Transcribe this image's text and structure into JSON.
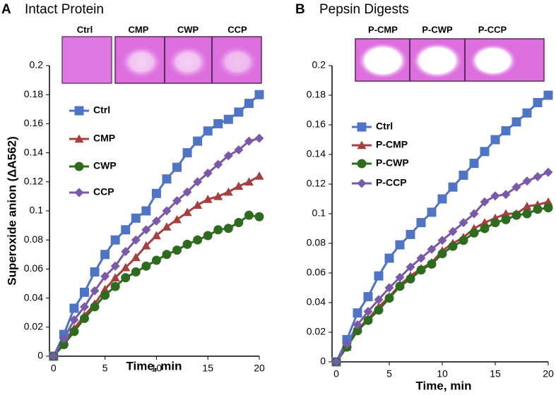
{
  "chart_data": [
    {
      "type": "line",
      "panel_label": "A",
      "title": "Intact Protein",
      "gel_labels": [
        "Ctrl",
        "CMP",
        "CWP",
        "CCP"
      ],
      "ylabel": "Superoxide anion (ΔA562)",
      "xlabel": "Time, min",
      "x": [
        0,
        1,
        2,
        3,
        4,
        5,
        6,
        7,
        8,
        9,
        10,
        11,
        12,
        13,
        14,
        15,
        16,
        17,
        18,
        19,
        20
      ],
      "xlim": [
        -0.4,
        20
      ],
      "ylim": [
        0,
        0.2
      ],
      "xticks": [
        0,
        5,
        10,
        15,
        20
      ],
      "yticks": [
        0,
        0.02,
        0.04,
        0.06,
        0.08,
        0.1,
        0.12,
        0.14,
        0.16,
        0.18,
        0.2
      ],
      "series": [
        {
          "name": "Ctrl",
          "color": "#4f74c4",
          "marker": "square",
          "values": [
            0,
            0.015,
            0.033,
            0.044,
            0.058,
            0.07,
            0.08,
            0.087,
            0.095,
            0.1,
            0.112,
            0.122,
            0.13,
            0.14,
            0.148,
            0.155,
            0.16,
            0.163,
            0.168,
            0.174,
            0.18
          ]
        },
        {
          "name": "CMP",
          "color": "#a5403e",
          "marker": "triangle",
          "values": [
            0,
            0.01,
            0.019,
            0.028,
            0.036,
            0.046,
            0.054,
            0.061,
            0.068,
            0.076,
            0.083,
            0.089,
            0.094,
            0.099,
            0.104,
            0.108,
            0.11,
            0.113,
            0.117,
            0.12,
            0.124
          ]
        },
        {
          "name": "CWP",
          "color": "#2f6b1e",
          "marker": "circle",
          "values": [
            0,
            0.008,
            0.017,
            0.026,
            0.034,
            0.042,
            0.048,
            0.054,
            0.058,
            0.062,
            0.066,
            0.07,
            0.073,
            0.077,
            0.08,
            0.083,
            0.087,
            0.088,
            0.092,
            0.097,
            0.096
          ]
        },
        {
          "name": "CCP",
          "color": "#7a5aa8",
          "marker": "diamond",
          "values": [
            0,
            0.012,
            0.025,
            0.034,
            0.045,
            0.055,
            0.062,
            0.072,
            0.08,
            0.087,
            0.093,
            0.1,
            0.107,
            0.113,
            0.12,
            0.126,
            0.132,
            0.138,
            0.142,
            0.148,
            0.15
          ]
        }
      ]
    },
    {
      "type": "line",
      "panel_label": "B",
      "title": "Pepsin Digests",
      "gel_labels": [
        "P-CMP",
        "P-CWP",
        "P-CCP"
      ],
      "xlabel": "Time, min",
      "x": [
        0,
        1,
        2,
        3,
        4,
        5,
        6,
        7,
        8,
        9,
        10,
        11,
        12,
        13,
        14,
        15,
        16,
        17,
        18,
        19,
        20
      ],
      "xlim": [
        -0.4,
        20
      ],
      "ylim": [
        0,
        0.2
      ],
      "xticks": [
        0,
        5,
        10,
        15,
        20
      ],
      "yticks": [
        0,
        0.02,
        0.04,
        0.06,
        0.08,
        0.1,
        0.12,
        0.14,
        0.16,
        0.18,
        0.2
      ],
      "series": [
        {
          "name": "Ctrl",
          "color": "#4f74c4",
          "marker": "square",
          "values": [
            0,
            0.015,
            0.033,
            0.044,
            0.058,
            0.07,
            0.079,
            0.086,
            0.094,
            0.101,
            0.11,
            0.118,
            0.126,
            0.134,
            0.142,
            0.15,
            0.156,
            0.162,
            0.168,
            0.175,
            0.18
          ]
        },
        {
          "name": "P-CMP",
          "color": "#a5403e",
          "marker": "triangle",
          "values": [
            0,
            0.01,
            0.022,
            0.029,
            0.037,
            0.044,
            0.052,
            0.058,
            0.063,
            0.067,
            0.075,
            0.08,
            0.084,
            0.09,
            0.094,
            0.097,
            0.1,
            0.1,
            0.105,
            0.106,
            0.108
          ]
        },
        {
          "name": "P-CWP",
          "color": "#2f6b1e",
          "marker": "circle",
          "values": [
            0,
            0.01,
            0.021,
            0.028,
            0.035,
            0.043,
            0.051,
            0.056,
            0.062,
            0.066,
            0.073,
            0.078,
            0.082,
            0.087,
            0.09,
            0.094,
            0.096,
            0.099,
            0.1,
            0.103,
            0.104
          ]
        },
        {
          "name": "P-CCP",
          "color": "#7a5aa8",
          "marker": "diamond",
          "values": [
            0,
            0.012,
            0.025,
            0.034,
            0.042,
            0.05,
            0.057,
            0.064,
            0.07,
            0.076,
            0.082,
            0.088,
            0.094,
            0.1,
            0.108,
            0.112,
            0.113,
            0.118,
            0.122,
            0.125,
            0.128
          ]
        }
      ]
    }
  ]
}
